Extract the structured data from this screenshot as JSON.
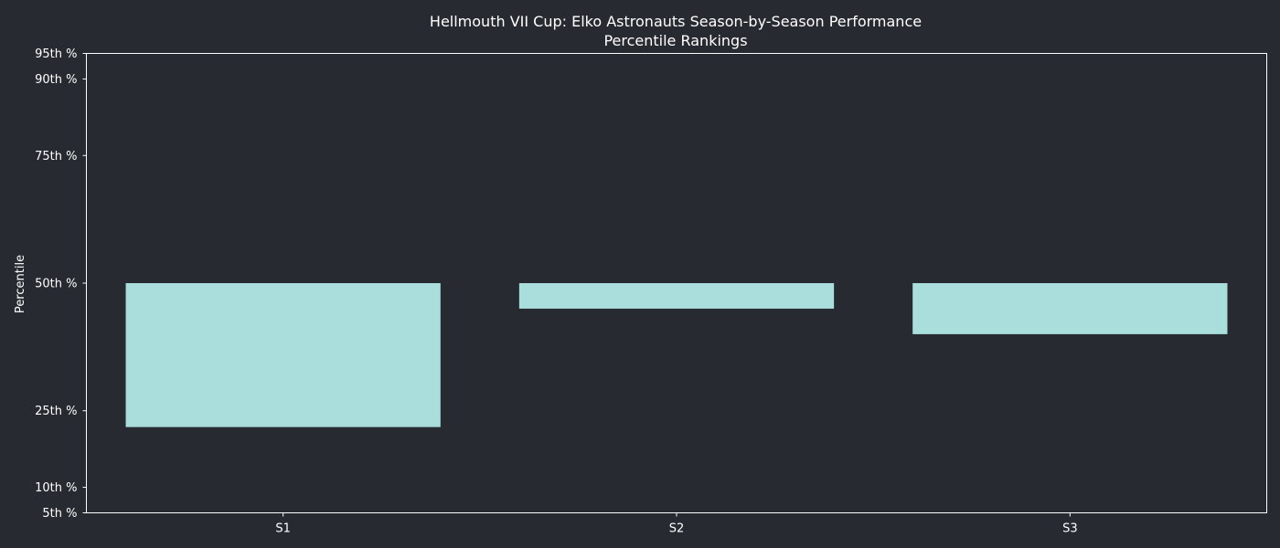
{
  "chart_data": {
    "type": "bar",
    "title": "Hellmouth VII Cup: Elko Astronauts Season-by-Season Performance",
    "subtitle": "Percentile Rankings",
    "xlabel": "",
    "ylabel": "Percentile",
    "ylim": [
      5,
      95
    ],
    "baseline": 50,
    "yticks": [
      {
        "value": 5,
        "label": "5th %"
      },
      {
        "value": 10,
        "label": "10th %"
      },
      {
        "value": 25,
        "label": "25th %"
      },
      {
        "value": 50,
        "label": "50th %"
      },
      {
        "value": 75,
        "label": "75th %"
      },
      {
        "value": 90,
        "label": "90th %"
      },
      {
        "value": 95,
        "label": "95th %"
      }
    ],
    "categories": [
      "S1",
      "S2",
      "S3"
    ],
    "values": [
      21.8,
      45,
      40
    ],
    "grid": false,
    "colors": {
      "background": "#272a30",
      "bar": "#aadedd",
      "axis": "#ffffff",
      "text": "#ffffff"
    }
  }
}
